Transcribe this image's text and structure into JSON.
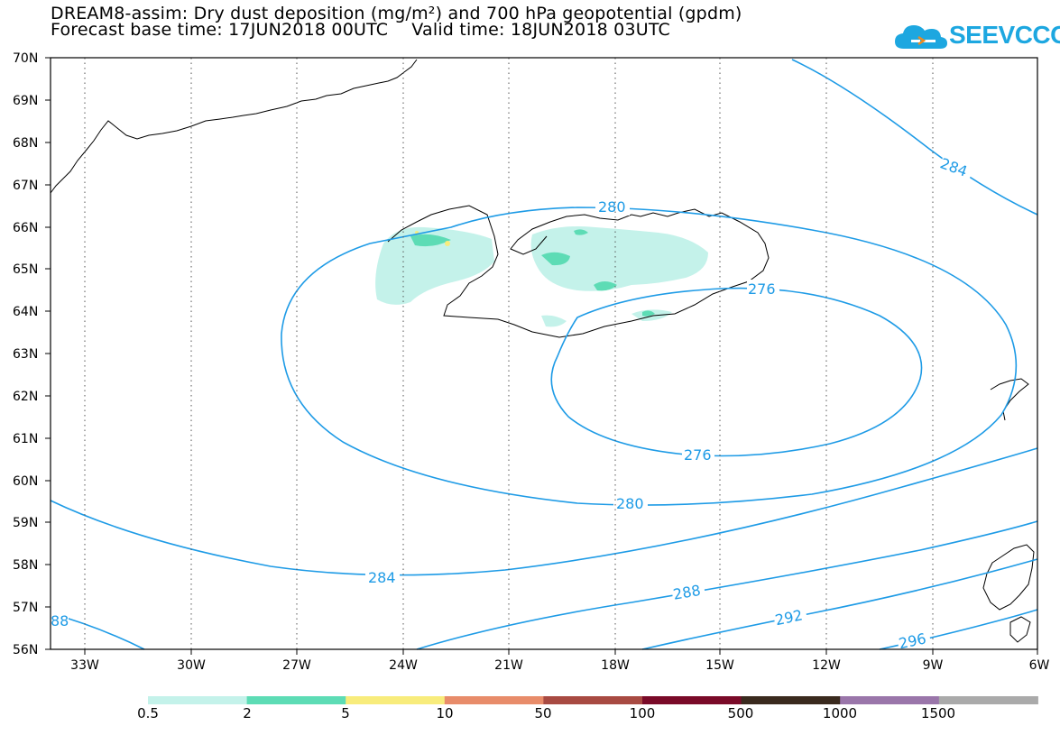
{
  "header": {
    "title_line1": "DREAM8-assim: Dry dust deposition (mg/m²) and 700 hPa geopotential (gpdm)",
    "base_time": "Forecast base time: 17JUN2018 00UTC",
    "valid_time": "Valid time: 18JUN2018 03UTC",
    "logo_text": "SEEVCCC"
  },
  "map": {
    "lat_labels": [
      "70N",
      "69N",
      "68N",
      "67N",
      "66N",
      "65N",
      "64N",
      "63N",
      "62N",
      "61N",
      "60N",
      "59N",
      "58N",
      "57N",
      "56N"
    ],
    "lon_labels": [
      "33W",
      "30W",
      "27W",
      "24W",
      "21W",
      "18W",
      "15W",
      "12W",
      "9W",
      "6W"
    ],
    "gridlines": true,
    "contour_color": "#1e9be6",
    "contour_labels": [
      "280",
      "284",
      "276",
      "276",
      "280",
      "284",
      "288",
      "292",
      "296",
      "88"
    ],
    "coastline_color": "#000000"
  },
  "colorbar": {
    "labels": [
      "0.5",
      "2",
      "5",
      "10",
      "50",
      "100",
      "500",
      "1000",
      "1500"
    ],
    "colors": [
      "#c4f2ea",
      "#5ddcb5",
      "#f8ec7c",
      "#e88c6a",
      "#a84a42",
      "#7a0a28",
      "#3a2a1e",
      "#9a76aa",
      "#aaaaaa"
    ]
  }
}
